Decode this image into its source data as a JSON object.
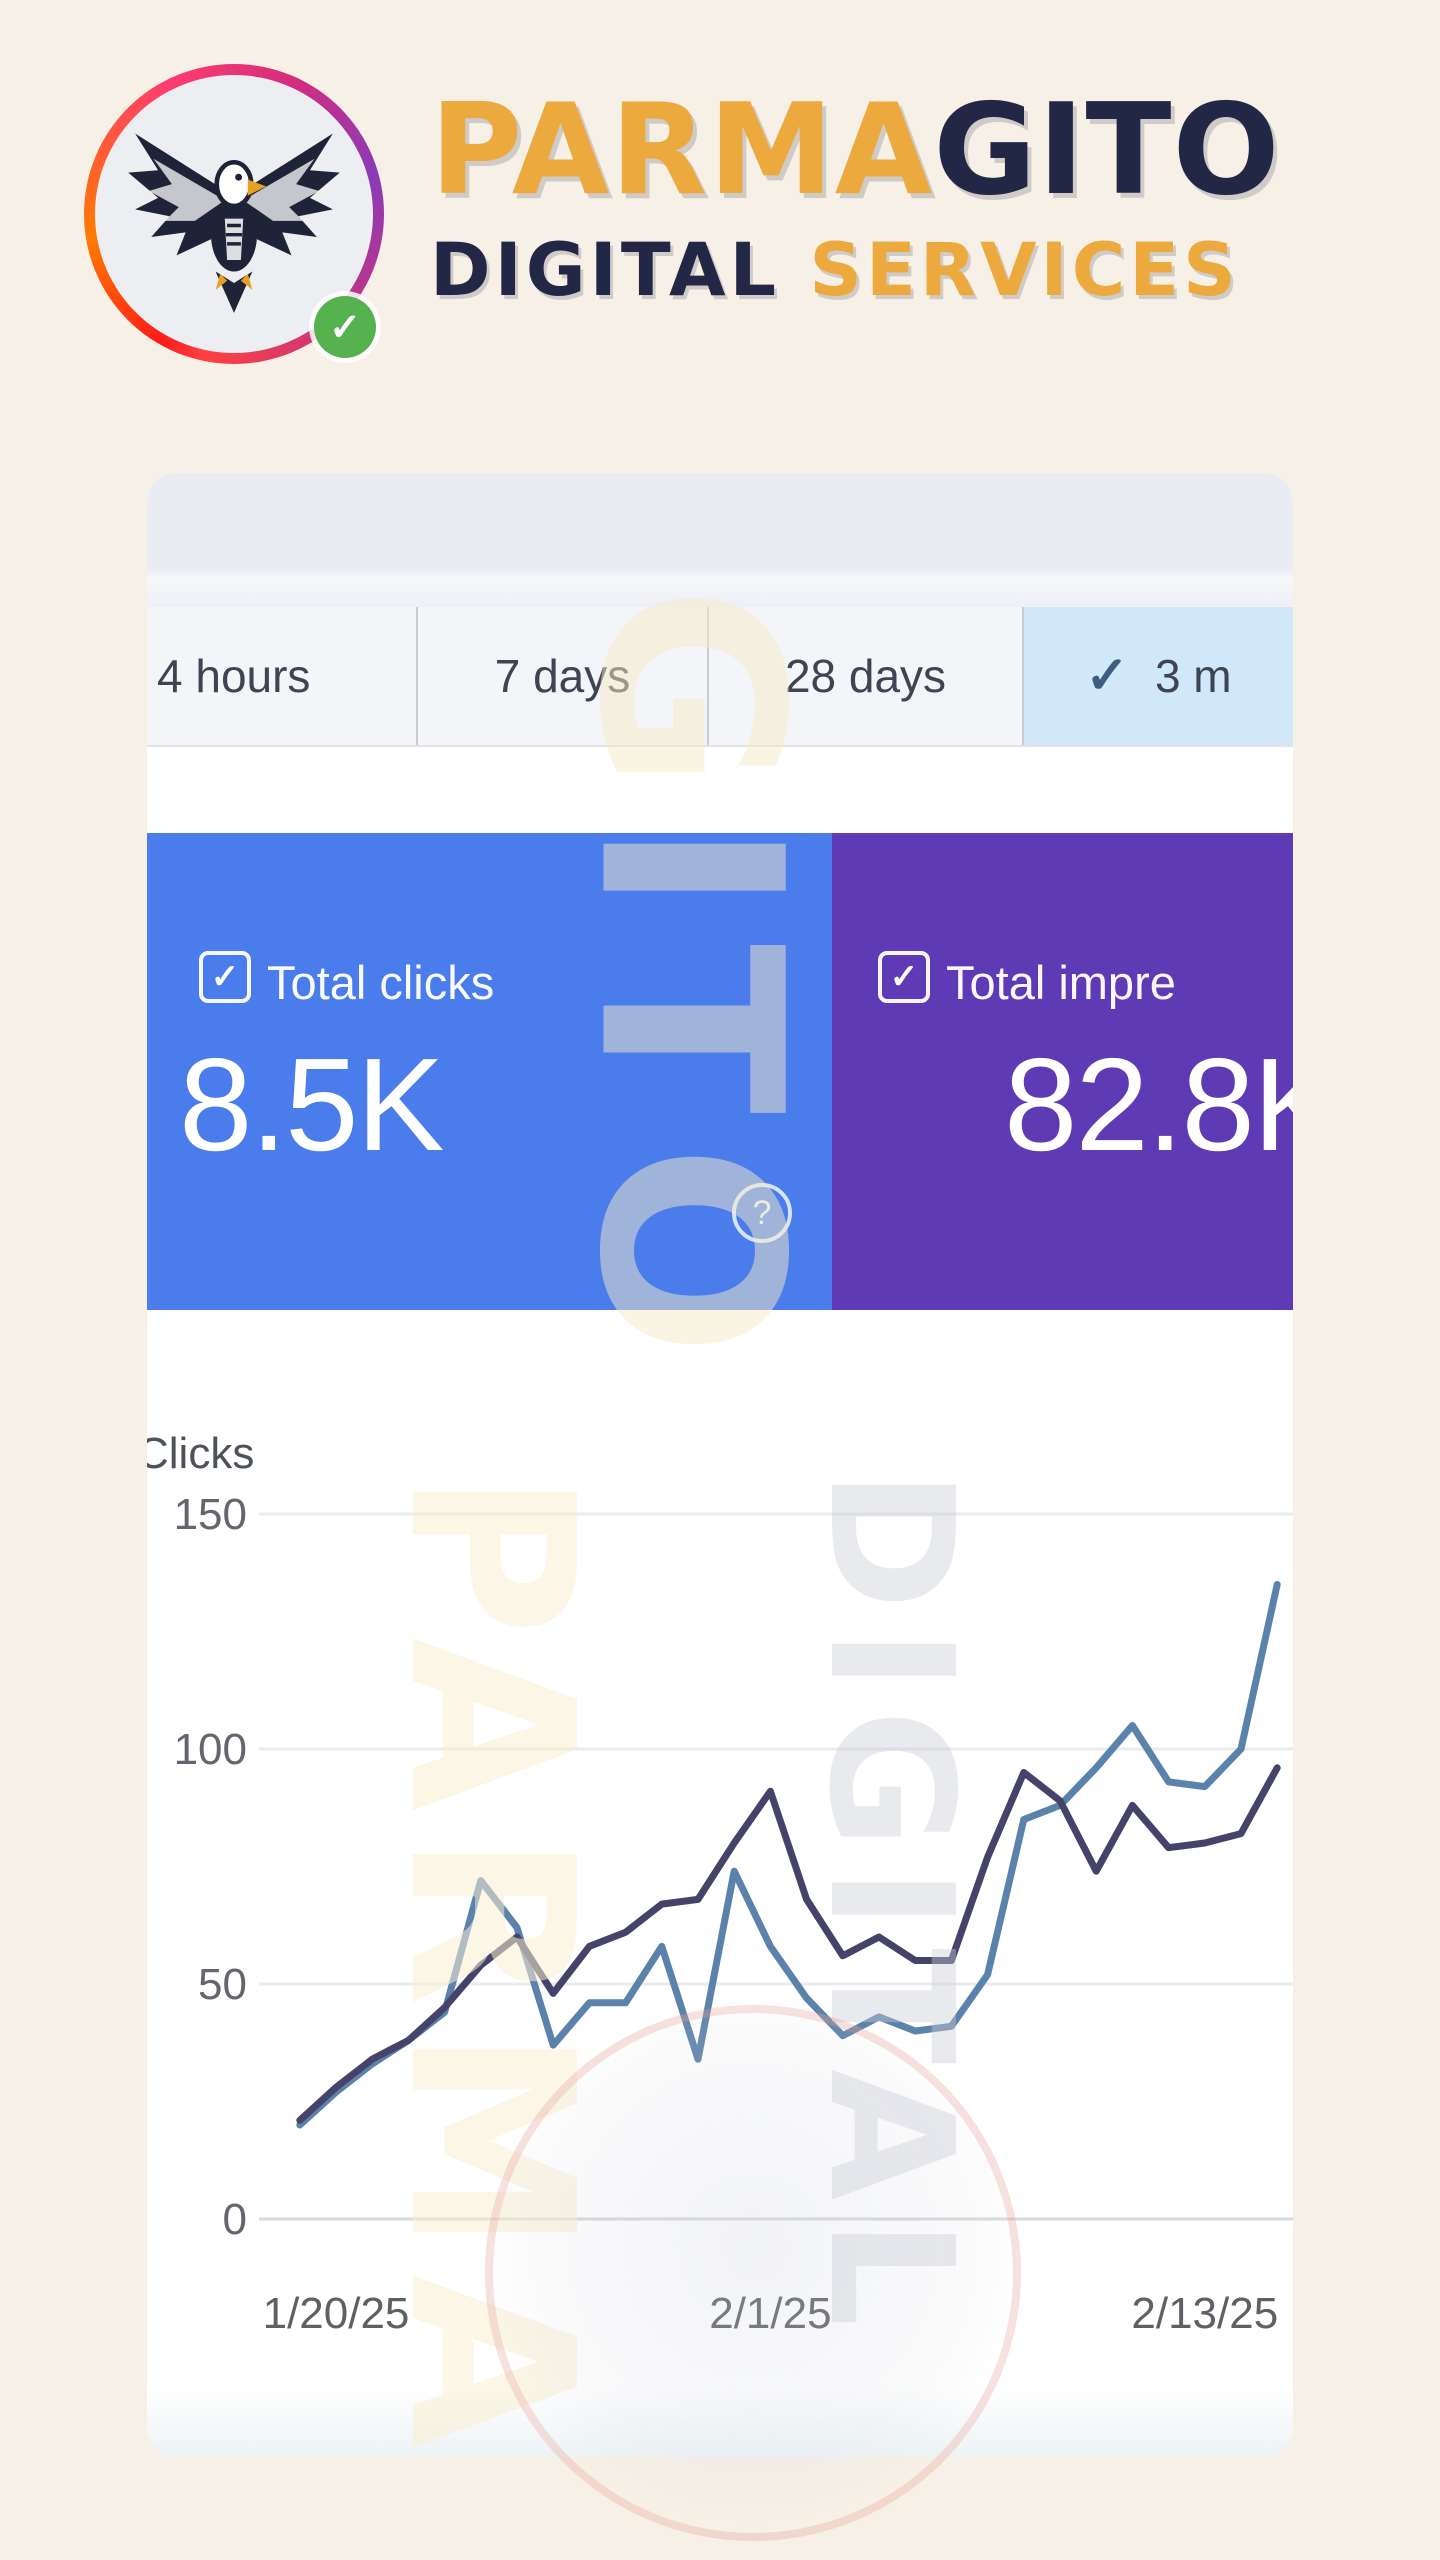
{
  "brand": {
    "line1_primary": "PARMA",
    "line1_secondary": "GITO",
    "line2_primary": "DIGITAL",
    "line2_secondary": " SERVICES",
    "logo_icon": "eagle-logo",
    "badge_icon": "verified-check-badge",
    "gold": "#eca93d",
    "navy": "#232746"
  },
  "toolbar": {
    "tabs": [
      {
        "label": "4 hours",
        "selected": false
      },
      {
        "label": "7 days",
        "selected": false
      },
      {
        "label": "28 days",
        "selected": false
      },
      {
        "label": "3 m",
        "selected": true,
        "check_glyph": "✓"
      }
    ],
    "selected_bg": "#d0e8f9"
  },
  "metrics": [
    {
      "label": "Total clicks",
      "value": "8.5K",
      "color": "#4a7ceb",
      "checkbox_glyph": "✓",
      "has_help_icon": true,
      "help_glyph": "?"
    },
    {
      "label": "Total impre",
      "value": "82.8K",
      "color": "#5e3ab4",
      "checkbox_glyph": "✓",
      "has_help_icon": false
    }
  ],
  "watermarks": {
    "text_over_cards": "GITO",
    "text_over_chart_left": "PARMA",
    "text_over_chart_right": "DIGITAL"
  },
  "chart_data": {
    "type": "line",
    "title": "",
    "ylabel": "Clicks",
    "xlabel": "",
    "ylim": [
      0,
      150
    ],
    "yticks": [
      0,
      50,
      100,
      150
    ],
    "grid": true,
    "legend_position": "none",
    "x": [
      "1/19/25",
      "1/20/25",
      "1/21/25",
      "1/22/25",
      "1/23/25",
      "1/24/25",
      "1/25/25",
      "1/26/25",
      "1/27/25",
      "1/28/25",
      "1/29/25",
      "1/30/25",
      "1/31/25",
      "2/1/25",
      "2/2/25",
      "2/3/25",
      "2/4/25",
      "2/5/25",
      "2/6/25",
      "2/7/25",
      "2/8/25",
      "2/9/25",
      "2/10/25",
      "2/11/25",
      "2/12/25",
      "2/13/25",
      "2/14/25",
      "2/15/25"
    ],
    "xticks": [
      {
        "index": 1,
        "label": "1/20/25"
      },
      {
        "index": 13,
        "label": "2/1/25"
      },
      {
        "index": 25,
        "label": "2/13/25"
      }
    ],
    "series": [
      {
        "name": "clicks-line",
        "color": "#5b82aa",
        "values": [
          20,
          27,
          33,
          38,
          44,
          72,
          62,
          37,
          46,
          46,
          58,
          34,
          74,
          58,
          47,
          39,
          43,
          40,
          41,
          52,
          85,
          88,
          96,
          105,
          93,
          92,
          100,
          135
        ]
      },
      {
        "name": "impressions-line",
        "color": "#454369",
        "values": [
          21,
          28,
          34,
          38,
          45,
          54,
          60,
          48,
          58,
          61,
          67,
          68,
          80,
          91,
          68,
          56,
          60,
          55,
          55,
          77,
          95,
          89,
          74,
          88,
          79,
          80,
          82,
          96
        ]
      }
    ],
    "axis_text_color": "#63666d",
    "grid_color": "#ebebed"
  }
}
